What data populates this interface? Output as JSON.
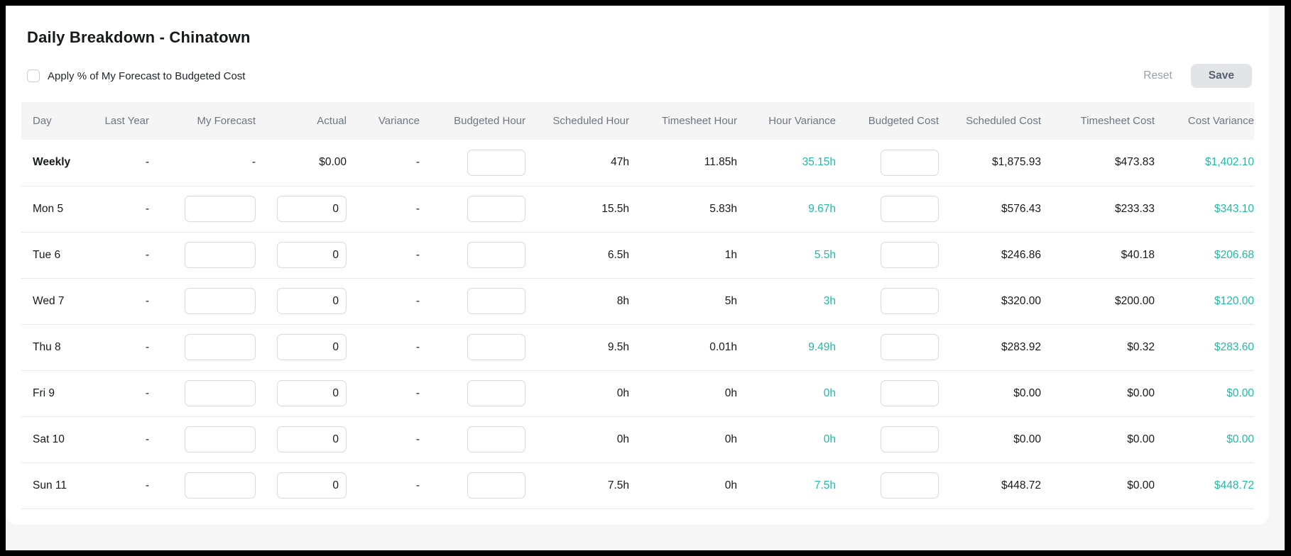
{
  "header": {
    "title": "Daily Breakdown - Chinatown",
    "checkbox_label": "Apply % of My Forecast to Budgeted Cost",
    "checkbox_checked": false,
    "reset_label": "Reset",
    "save_label": "Save"
  },
  "colors": {
    "accent_teal": "#20bba7",
    "header_text_gray": "#6e7680",
    "save_button_bg": "#e2e4e8",
    "reset_text_gray": "#9aa1ab"
  },
  "table": {
    "columns": [
      "Day",
      "Last Year",
      "My Forecast",
      "Actual",
      "Variance",
      "Budgeted Hour",
      "Scheduled Hour",
      "Timesheet Hour",
      "Hour Variance",
      "Budgeted Cost",
      "Scheduled Cost",
      "Timesheet Cost",
      "Cost Variance"
    ],
    "rows": [
      {
        "day": "Weekly",
        "emphasis": true,
        "last_year": "-",
        "my_forecast": {
          "input": false,
          "value": "-"
        },
        "actual": {
          "input": false,
          "value": "$0.00"
        },
        "variance": "-",
        "budgeted_hour": {
          "input": true,
          "value": ""
        },
        "scheduled_hour": "47h",
        "timesheet_hour": "11.85h",
        "hour_variance": "35.15h",
        "budgeted_cost": {
          "input": true,
          "value": ""
        },
        "scheduled_cost": "$1,875.93",
        "timesheet_cost": "$473.83",
        "cost_variance": "$1,402.10"
      },
      {
        "day": "Mon 5",
        "emphasis": false,
        "last_year": "-",
        "my_forecast": {
          "input": true,
          "value": ""
        },
        "actual": {
          "input": true,
          "value": "0"
        },
        "variance": "-",
        "budgeted_hour": {
          "input": true,
          "value": ""
        },
        "scheduled_hour": "15.5h",
        "timesheet_hour": "5.83h",
        "hour_variance": "9.67h",
        "budgeted_cost": {
          "input": true,
          "value": ""
        },
        "scheduled_cost": "$576.43",
        "timesheet_cost": "$233.33",
        "cost_variance": "$343.10"
      },
      {
        "day": "Tue 6",
        "emphasis": false,
        "last_year": "-",
        "my_forecast": {
          "input": true,
          "value": ""
        },
        "actual": {
          "input": true,
          "value": "0"
        },
        "variance": "-",
        "budgeted_hour": {
          "input": true,
          "value": ""
        },
        "scheduled_hour": "6.5h",
        "timesheet_hour": "1h",
        "hour_variance": "5.5h",
        "budgeted_cost": {
          "input": true,
          "value": ""
        },
        "scheduled_cost": "$246.86",
        "timesheet_cost": "$40.18",
        "cost_variance": "$206.68"
      },
      {
        "day": "Wed 7",
        "emphasis": false,
        "last_year": "-",
        "my_forecast": {
          "input": true,
          "value": ""
        },
        "actual": {
          "input": true,
          "value": "0"
        },
        "variance": "-",
        "budgeted_hour": {
          "input": true,
          "value": ""
        },
        "scheduled_hour": "8h",
        "timesheet_hour": "5h",
        "hour_variance": "3h",
        "budgeted_cost": {
          "input": true,
          "value": ""
        },
        "scheduled_cost": "$320.00",
        "timesheet_cost": "$200.00",
        "cost_variance": "$120.00"
      },
      {
        "day": "Thu 8",
        "emphasis": false,
        "last_year": "-",
        "my_forecast": {
          "input": true,
          "value": ""
        },
        "actual": {
          "input": true,
          "value": "0"
        },
        "variance": "-",
        "budgeted_hour": {
          "input": true,
          "value": ""
        },
        "scheduled_hour": "9.5h",
        "timesheet_hour": "0.01h",
        "hour_variance": "9.49h",
        "budgeted_cost": {
          "input": true,
          "value": ""
        },
        "scheduled_cost": "$283.92",
        "timesheet_cost": "$0.32",
        "cost_variance": "$283.60"
      },
      {
        "day": "Fri 9",
        "emphasis": false,
        "last_year": "-",
        "my_forecast": {
          "input": true,
          "value": ""
        },
        "actual": {
          "input": true,
          "value": "0"
        },
        "variance": "-",
        "budgeted_hour": {
          "input": true,
          "value": ""
        },
        "scheduled_hour": "0h",
        "timesheet_hour": "0h",
        "hour_variance": "0h",
        "budgeted_cost": {
          "input": true,
          "value": ""
        },
        "scheduled_cost": "$0.00",
        "timesheet_cost": "$0.00",
        "cost_variance": "$0.00"
      },
      {
        "day": "Sat 10",
        "emphasis": false,
        "last_year": "-",
        "my_forecast": {
          "input": true,
          "value": ""
        },
        "actual": {
          "input": true,
          "value": "0"
        },
        "variance": "-",
        "budgeted_hour": {
          "input": true,
          "value": ""
        },
        "scheduled_hour": "0h",
        "timesheet_hour": "0h",
        "hour_variance": "0h",
        "budgeted_cost": {
          "input": true,
          "value": ""
        },
        "scheduled_cost": "$0.00",
        "timesheet_cost": "$0.00",
        "cost_variance": "$0.00"
      },
      {
        "day": "Sun 11",
        "emphasis": false,
        "last_year": "-",
        "my_forecast": {
          "input": true,
          "value": ""
        },
        "actual": {
          "input": true,
          "value": "0"
        },
        "variance": "-",
        "budgeted_hour": {
          "input": true,
          "value": ""
        },
        "scheduled_hour": "7.5h",
        "timesheet_hour": "0h",
        "hour_variance": "7.5h",
        "budgeted_cost": {
          "input": true,
          "value": ""
        },
        "scheduled_cost": "$448.72",
        "timesheet_cost": "$0.00",
        "cost_variance": "$448.72"
      }
    ]
  }
}
